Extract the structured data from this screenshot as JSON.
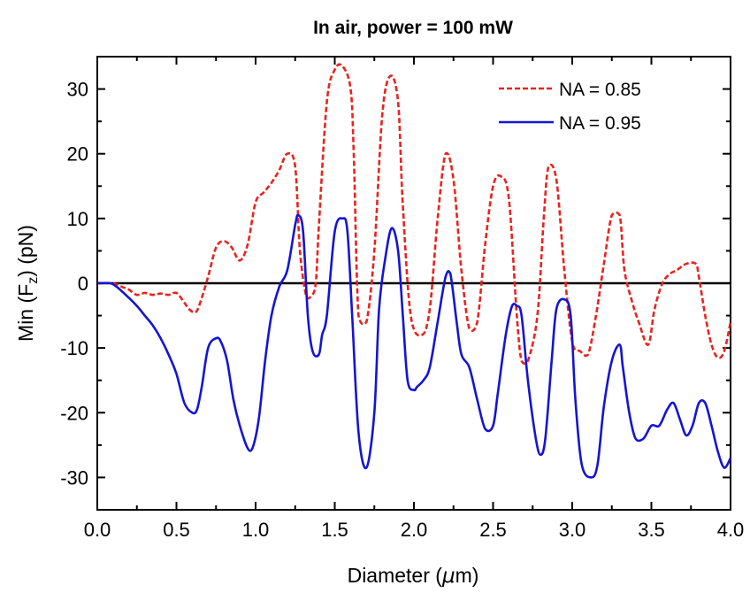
{
  "chart_data": {
    "type": "line",
    "title": "In air, power = 100 mW",
    "xlabel": {
      "prefix": "Diameter (",
      "mu": "μ",
      "suffix": "m)"
    },
    "ylabel": {
      "prefix": "Min (F",
      "sub": "z",
      "suffix": ") (pN)"
    },
    "xlim": [
      0,
      4.0
    ],
    "ylim": [
      -35,
      35
    ],
    "xticks": [
      0.0,
      0.5,
      1.0,
      1.5,
      2.0,
      2.5,
      3.0,
      3.5,
      4.0
    ],
    "xtick_labels": [
      "0.0",
      "0.5",
      "1.0",
      "1.5",
      "2.0",
      "2.5",
      "3.0",
      "3.5",
      "4.0"
    ],
    "yticks": [
      -30,
      -20,
      -10,
      0,
      10,
      20,
      30
    ],
    "ytick_labels": [
      "-30",
      "-20",
      "-10",
      "0",
      "10",
      "20",
      "30"
    ],
    "zero_line": true,
    "grid": false,
    "legend_position": "top-right",
    "series": [
      {
        "name": "NA = 0.85",
        "color": "#e8231e",
        "dash": "dashed",
        "x": [
          0.0,
          0.1,
          0.15,
          0.2,
          0.25,
          0.3,
          0.35,
          0.4,
          0.45,
          0.5,
          0.55,
          0.58,
          0.62,
          0.65,
          0.7,
          0.75,
          0.8,
          0.85,
          0.9,
          0.95,
          1.0,
          1.05,
          1.1,
          1.15,
          1.2,
          1.25,
          1.28,
          1.32,
          1.35,
          1.38,
          1.4,
          1.45,
          1.5,
          1.55,
          1.6,
          1.62,
          1.65,
          1.7,
          1.75,
          1.8,
          1.85,
          1.9,
          1.93,
          1.98,
          2.05,
          2.1,
          2.15,
          2.2,
          2.25,
          2.3,
          2.35,
          2.4,
          2.45,
          2.5,
          2.55,
          2.6,
          2.65,
          2.68,
          2.72,
          2.78,
          2.82,
          2.85,
          2.9,
          2.95,
          3.0,
          3.05,
          3.1,
          3.15,
          3.2,
          3.25,
          3.3,
          3.33,
          3.38,
          3.42,
          3.48,
          3.52,
          3.57,
          3.62,
          3.66,
          3.72,
          3.78,
          3.8,
          3.84,
          3.88,
          3.92,
          3.96,
          4.0
        ],
        "y": [
          0,
          0,
          -0.5,
          -1,
          -1.8,
          -1.5,
          -1.8,
          -1.6,
          -1.8,
          -1.5,
          -3,
          -4,
          -4.5,
          -3,
          1,
          5.5,
          6.5,
          5.5,
          3.5,
          6,
          12.5,
          14,
          15.5,
          17.5,
          20,
          18,
          5,
          -2,
          -2,
          0,
          9,
          28,
          33,
          33.5,
          30,
          20,
          -5,
          -6,
          5,
          26,
          32,
          28,
          12,
          -5,
          -8,
          -4,
          10,
          20,
          16,
          2,
          -7,
          -6,
          6,
          15,
          16.5,
          13,
          -5,
          -12,
          -12,
          -5,
          10,
          18,
          16,
          2,
          -9,
          -10.5,
          -11,
          -5,
          3,
          10.5,
          10.5,
          2,
          -3,
          -6,
          -9.5,
          -4,
          0,
          1.5,
          2,
          3,
          3,
          1,
          -5,
          -9.5,
          -11.5,
          -10.5,
          -6
        ]
      },
      {
        "name": "NA = 0.95",
        "color": "#1414d6",
        "dash": "solid",
        "x": [
          0.0,
          0.08,
          0.12,
          0.18,
          0.25,
          0.3,
          0.35,
          0.4,
          0.45,
          0.5,
          0.55,
          0.6,
          0.63,
          0.66,
          0.7,
          0.75,
          0.78,
          0.82,
          0.86,
          0.9,
          0.95,
          0.98,
          1.02,
          1.06,
          1.1,
          1.15,
          1.2,
          1.25,
          1.27,
          1.3,
          1.33,
          1.36,
          1.4,
          1.42,
          1.45,
          1.5,
          1.55,
          1.58,
          1.61,
          1.65,
          1.7,
          1.75,
          1.78,
          1.82,
          1.86,
          1.9,
          1.93,
          1.96,
          2.0,
          2.02,
          2.06,
          2.1,
          2.15,
          2.2,
          2.23,
          2.27,
          2.3,
          2.35,
          2.4,
          2.45,
          2.5,
          2.53,
          2.58,
          2.62,
          2.65,
          2.68,
          2.72,
          2.77,
          2.8,
          2.83,
          2.87,
          2.9,
          2.95,
          2.99,
          3.02,
          3.06,
          3.12,
          3.16,
          3.2,
          3.25,
          3.3,
          3.32,
          3.36,
          3.4,
          3.45,
          3.5,
          3.55,
          3.6,
          3.64,
          3.68,
          3.72,
          3.76,
          3.8,
          3.84,
          3.88,
          3.92,
          3.96,
          4.0
        ],
        "y": [
          0,
          0,
          -0.5,
          -1.8,
          -3.5,
          -5,
          -6.5,
          -8.5,
          -11,
          -14,
          -18.5,
          -20,
          -19.5,
          -16,
          -10,
          -8.5,
          -9,
          -12,
          -18,
          -22,
          -25.5,
          -25.5,
          -21,
          -12,
          -5,
          -0.5,
          2,
          9,
          10.5,
          8,
          -5,
          -10.5,
          -11,
          -8,
          -5,
          8,
          10,
          8,
          -5,
          -23,
          -28.5,
          -20,
          -4,
          4,
          8.5,
          5,
          -5,
          -15,
          -16.5,
          -16,
          -15,
          -13,
          -6,
          1,
          1.5,
          -6,
          -11,
          -13,
          -18,
          -22.5,
          -22,
          -17,
          -8,
          -3.5,
          -3.5,
          -5,
          -15,
          -24,
          -26.5,
          -24,
          -12,
          -4,
          -2.5,
          -5,
          -18,
          -28,
          -30,
          -28,
          -19,
          -12,
          -9.5,
          -13,
          -20,
          -24,
          -24,
          -22,
          -22,
          -19.5,
          -18.5,
          -21,
          -23.5,
          -22,
          -18.5,
          -18.5,
          -22,
          -26,
          -28.5,
          -27
        ]
      }
    ]
  }
}
